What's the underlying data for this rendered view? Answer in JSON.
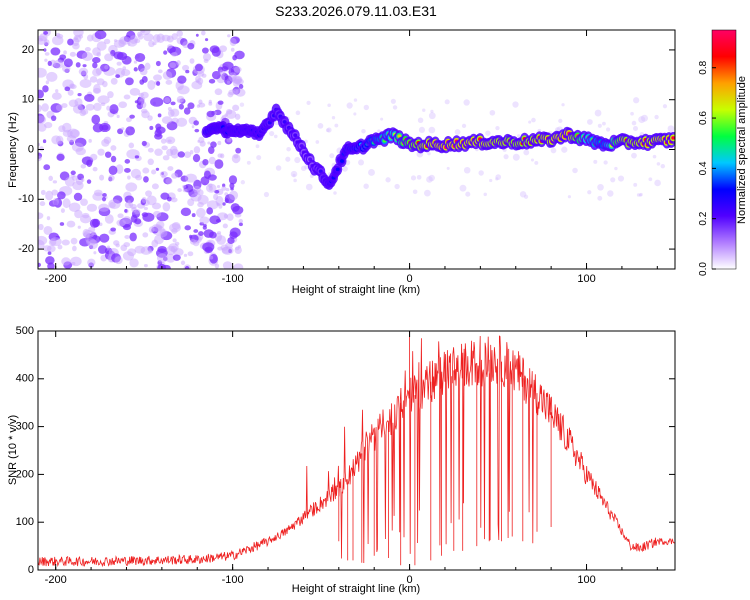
{
  "figure_title": "S233.2026.079.11.03.E31",
  "chart_data": [
    {
      "type": "heatmap",
      "title": "S233.2026.079.11.03.E31",
      "xlabel": "Height of straight line (km)",
      "ylabel": "Frequency (Hz)",
      "xlim": [
        -210,
        150
      ],
      "ylim": [
        -24,
        24
      ],
      "xticks": [
        -200,
        -100,
        0,
        100
      ],
      "xtick_labels": [
        "-200",
        "-100",
        "0",
        "100"
      ],
      "yticks": [
        -20,
        -10,
        0,
        10,
        20
      ],
      "ytick_labels": [
        "-20",
        "-10",
        "0",
        "10",
        "20"
      ],
      "grid": false,
      "ridge": {
        "description": "main spectral ridge (frequency vs height)",
        "x": [
          -115,
          -100,
          -85,
          -75,
          -70,
          -60,
          -55,
          -50,
          -45,
          -40,
          -35,
          -30,
          -25,
          -20,
          -15,
          -10,
          -5,
          0,
          10,
          20,
          40,
          60,
          80,
          90,
          100,
          110,
          120,
          135,
          150
        ],
        "y": [
          4,
          4,
          3,
          8,
          5,
          0,
          -3,
          -5,
          -7,
          -3,
          0,
          0,
          1,
          2,
          2,
          3,
          2,
          1,
          1,
          1,
          1.5,
          1.5,
          2,
          3,
          2,
          1,
          1.5,
          1.5,
          2
        ],
        "amplitude": [
          0.35,
          0.3,
          0.3,
          0.25,
          0.25,
          0.2,
          0.2,
          0.25,
          0.3,
          0.3,
          0.35,
          0.4,
          0.45,
          0.5,
          0.55,
          0.6,
          0.7,
          0.8,
          0.9,
          0.95,
          0.9,
          0.85,
          0.9,
          0.95,
          0.6,
          0.5,
          0.85,
          0.9,
          0.9
        ]
      },
      "noise_region": {
        "x_range": [
          -210,
          -95
        ],
        "y_range": [
          -24,
          24
        ],
        "amplitude": 0.1
      },
      "colorbar": {
        "label": "Normalized spectral amplitude",
        "range": [
          0.0,
          0.95
        ],
        "ticks": [
          0.0,
          0.2,
          0.4,
          0.6,
          0.8
        ],
        "tick_labels": [
          "0.0",
          "0.2",
          "0.4",
          "0.6",
          "0.8"
        ],
        "colormap": [
          "#ffffff",
          "#b07cff",
          "#5000ff",
          "#0000ff",
          "#00c8ff",
          "#00ff40",
          "#c8ff00",
          "#ffa000",
          "#ff0000",
          "#ff0064"
        ]
      }
    },
    {
      "type": "line",
      "xlabel": "Height of straight line (km)",
      "ylabel": "SNR (10 * v/v)",
      "xlim": [
        -210,
        150
      ],
      "ylim": [
        0,
        500
      ],
      "xticks": [
        -200,
        -100,
        0,
        100
      ],
      "xtick_labels": [
        "-200",
        "-100",
        "0",
        "100"
      ],
      "yticks": [
        0,
        100,
        200,
        300,
        400,
        500
      ],
      "ytick_labels": [
        "0",
        "100",
        "200",
        "300",
        "400",
        "500"
      ],
      "grid": false,
      "series": [
        {
          "name": "SNR",
          "color": "#ee2020",
          "x": [
            -210,
            -180,
            -150,
            -120,
            -100,
            -90,
            -80,
            -70,
            -60,
            -50,
            -40,
            -35,
            -30,
            -25,
            -20,
            -15,
            -10,
            -5,
            0,
            5,
            10,
            20,
            30,
            40,
            45,
            50,
            55,
            60,
            70,
            80,
            90,
            100,
            110,
            120,
            125,
            130,
            140,
            150
          ],
          "values": [
            18,
            18,
            20,
            22,
            30,
            45,
            60,
            80,
            110,
            140,
            170,
            190,
            220,
            260,
            280,
            300,
            320,
            350,
            360,
            370,
            390,
            410,
            425,
            435,
            440,
            440,
            430,
            415,
            380,
            330,
            270,
            200,
            140,
            80,
            50,
            45,
            60,
            60
          ],
          "spike_x": [
            -40,
            -35,
            -32,
            -27,
            -20,
            -12,
            -5,
            0,
            3,
            12,
            18,
            25,
            30,
            38,
            45,
            52,
            58,
            64,
            72,
            80
          ],
          "spike_to": [
            60,
            20,
            20,
            15,
            30,
            25,
            10,
            500,
            10,
            20,
            30,
            40,
            40,
            50,
            60,
            60,
            70,
            60,
            80,
            90
          ]
        }
      ]
    }
  ]
}
